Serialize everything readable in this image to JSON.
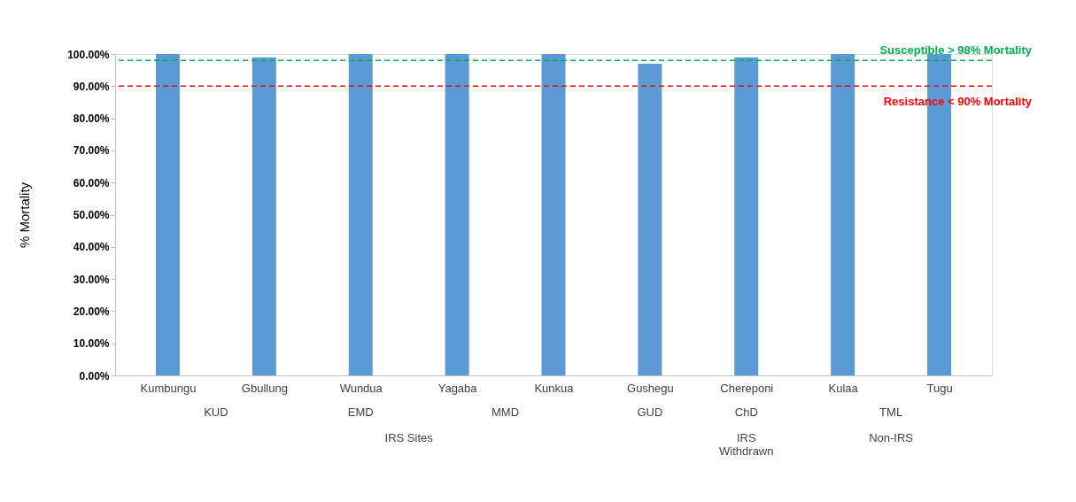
{
  "chart_data": {
    "type": "bar",
    "ylabel": "% Mortality",
    "categories": [
      "Kumbungu",
      "Gbullung",
      "Wundua",
      "Yagaba",
      "Kunkua",
      "Gushegu",
      "Chereponi",
      "Kulaa",
      "Tugu"
    ],
    "values": [
      100,
      99,
      100,
      100,
      100,
      97,
      99,
      100,
      100
    ],
    "color": "#5b9bd5",
    "ylim": [
      0,
      100
    ],
    "yticks": [
      {
        "value": 0,
        "label": "0.00%"
      },
      {
        "value": 10,
        "label": "10.00%"
      },
      {
        "value": 20,
        "label": "20.00%"
      },
      {
        "value": 30,
        "label": "30.00%"
      },
      {
        "value": 40,
        "label": "40.00%"
      },
      {
        "value": 50,
        "label": "50.00%"
      },
      {
        "value": 60,
        "label": "60.00%"
      },
      {
        "value": 70,
        "label": "70.00%"
      },
      {
        "value": 80,
        "label": "80.00%"
      },
      {
        "value": 90,
        "label": "90.00%"
      },
      {
        "value": 100,
        "label": "100.00%"
      }
    ],
    "ref_lines": [
      {
        "axis": "y",
        "value": 98,
        "label": "Susceptible > 98% Mortality",
        "color": "#00b050",
        "line_style": "dashed"
      },
      {
        "axis": "y",
        "value": 90,
        "label": "Resistance < 90% Mortality",
        "color": "#ff0000",
        "line_style": "dashed"
      }
    ],
    "annotations": [
      "KUD",
      "EMD",
      "MMD",
      "GUD",
      "ChD",
      "TML",
      "IRS Sites",
      "IRS\nWithdrawn",
      "Non-IRS"
    ],
    "grid": false
  }
}
